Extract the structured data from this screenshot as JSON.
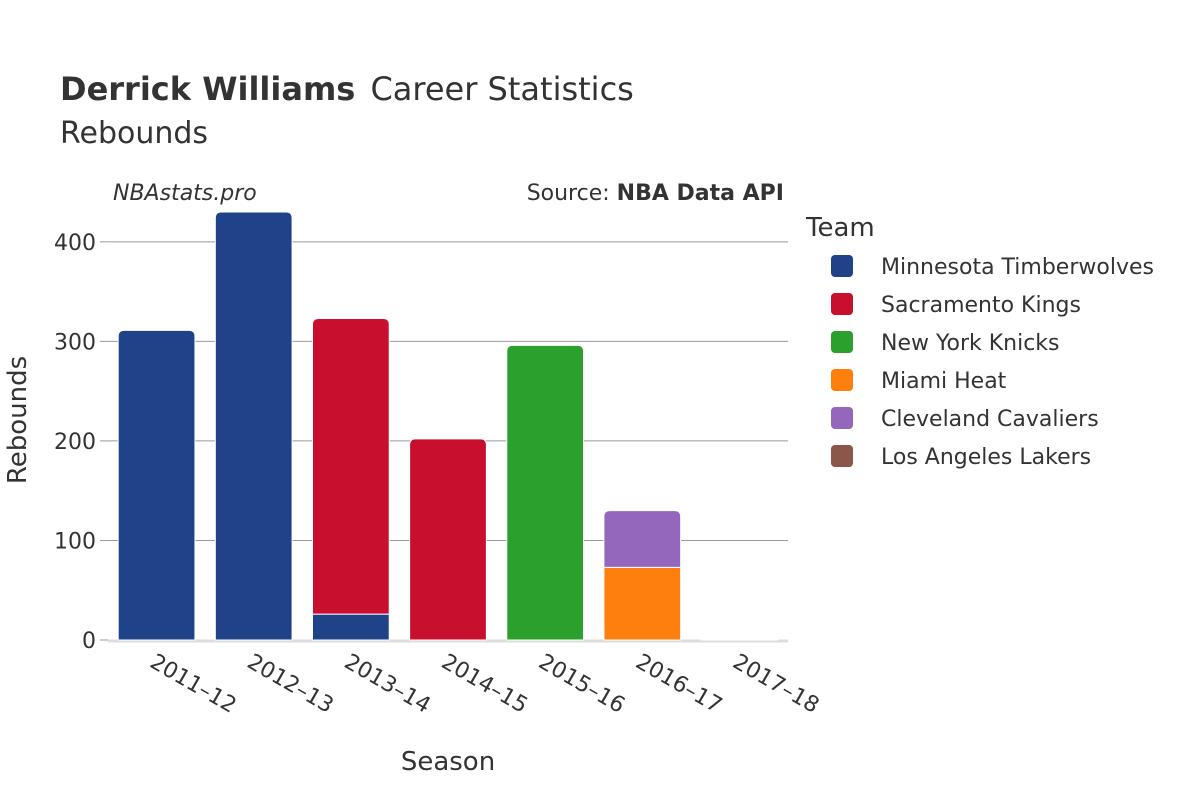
{
  "title": {
    "bold": "Derrick Williams",
    "rest": "Career Statistics",
    "subtitle": "Rebounds"
  },
  "watermark": "NBAstats.pro",
  "source": {
    "prefix": "Source: ",
    "name": "NBA Data API"
  },
  "chart_data": {
    "type": "bar",
    "stacked": true,
    "title": "Derrick Williams Career Statistics",
    "subtitle": "Rebounds",
    "xlabel": "Season",
    "ylabel": "Rebounds",
    "ylim": [
      0,
      440
    ],
    "yticks": [
      0,
      100,
      200,
      300,
      400
    ],
    "grid": true,
    "legend_title": "Team",
    "legend_position": "right",
    "categories": [
      "2011–12",
      "2012–13",
      "2013–14",
      "2014–15",
      "2015–16",
      "2016–17",
      "2017–18"
    ],
    "series": [
      {
        "name": "Minnesota Timberwolves",
        "color": "#1f4289",
        "values": [
          311,
          430,
          26,
          0,
          0,
          0,
          0
        ]
      },
      {
        "name": "Sacramento Kings",
        "color": "#c8102e",
        "values": [
          0,
          0,
          297,
          202,
          0,
          0,
          0
        ]
      },
      {
        "name": "New York Knicks",
        "color": "#2ca02c",
        "values": [
          0,
          0,
          0,
          0,
          296,
          0,
          0
        ]
      },
      {
        "name": "Miami Heat",
        "color": "#ff7f0e",
        "values": [
          0,
          0,
          0,
          0,
          0,
          73,
          0
        ]
      },
      {
        "name": "Cleveland Cavaliers",
        "color": "#9467bd",
        "values": [
          0,
          0,
          0,
          0,
          0,
          57,
          0
        ]
      },
      {
        "name": "Los Angeles Lakers",
        "color": "#8c564b",
        "values": [
          0,
          0,
          0,
          0,
          0,
          0,
          1
        ]
      }
    ]
  }
}
